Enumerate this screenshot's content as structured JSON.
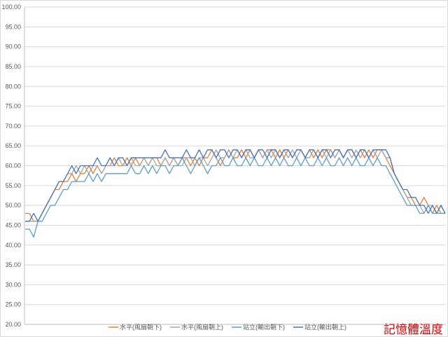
{
  "chart_data": {
    "type": "line",
    "title": "",
    "xlabel": "",
    "ylabel": "",
    "ylim": [
      20,
      100
    ],
    "ytick_step": 5,
    "ytick_format": "0.00",
    "grid": true,
    "legend_placement": "bottom",
    "annotation": "記憶體溫度",
    "annotation_color": "#e00000",
    "series": [
      {
        "name": "水平(風扇朝下)",
        "color": "#ED7D31",
        "values": [
          48,
          48,
          46,
          46,
          48,
          50,
          52,
          54,
          54,
          56,
          56,
          58,
          56,
          58,
          58,
          60,
          58,
          60,
          58,
          60,
          60,
          62,
          60,
          60,
          62,
          60,
          62,
          60,
          62,
          60,
          62,
          62,
          60,
          62,
          60,
          62,
          60,
          62,
          62,
          60,
          62,
          60,
          62,
          62,
          64,
          62,
          60,
          62,
          64,
          62,
          62,
          64,
          62,
          64,
          62,
          64,
          62,
          64,
          64,
          62,
          64,
          62,
          64,
          62,
          64,
          64,
          62,
          64,
          62,
          64,
          62,
          64,
          64,
          62,
          64,
          62,
          64,
          64,
          62,
          64,
          62,
          64,
          62,
          64,
          64,
          62,
          60,
          58,
          56,
          54,
          52,
          52,
          50,
          50,
          52,
          50,
          48,
          50,
          48,
          48
        ]
      },
      {
        "name": "水平(風扇朝上)",
        "color": "#A5A5A5",
        "values": [
          46,
          46,
          46,
          46,
          48,
          50,
          52,
          54,
          56,
          56,
          58,
          58,
          60,
          58,
          60,
          58,
          60,
          60,
          58,
          60,
          60,
          60,
          62,
          60,
          60,
          62,
          60,
          60,
          62,
          60,
          62,
          60,
          60,
          62,
          60,
          62,
          60,
          60,
          62,
          62,
          60,
          62,
          62,
          60,
          62,
          64,
          62,
          62,
          64,
          62,
          64,
          62,
          64,
          62,
          62,
          64,
          62,
          64,
          62,
          64,
          62,
          64,
          62,
          64,
          62,
          64,
          62,
          62,
          64,
          62,
          64,
          62,
          64,
          62,
          64,
          62,
          64,
          62,
          64,
          62,
          64,
          62,
          64,
          62,
          64,
          62,
          62,
          58,
          56,
          54,
          52,
          50,
          50,
          50,
          48,
          50,
          50,
          48,
          50,
          48
        ]
      },
      {
        "name": "站立(輸出朝下)",
        "color": "#5B9BD5",
        "values": [
          44,
          44,
          42,
          46,
          46,
          48,
          50,
          50,
          52,
          54,
          54,
          56,
          56,
          56,
          56,
          58,
          56,
          58,
          56,
          58,
          58,
          58,
          58,
          58,
          58,
          60,
          58,
          58,
          60,
          58,
          60,
          58,
          60,
          60,
          58,
          60,
          60,
          62,
          60,
          58,
          60,
          62,
          60,
          58,
          60,
          60,
          62,
          60,
          60,
          62,
          60,
          60,
          62,
          60,
          62,
          60,
          60,
          62,
          60,
          62,
          60,
          62,
          60,
          60,
          62,
          60,
          62,
          60,
          60,
          62,
          60,
          62,
          60,
          60,
          62,
          60,
          62,
          60,
          62,
          60,
          60,
          62,
          60,
          62,
          60,
          60,
          58,
          56,
          54,
          52,
          50,
          50,
          50,
          48,
          48,
          50,
          48,
          48,
          48,
          48
        ]
      },
      {
        "name": "站立(輸出朝上)",
        "color": "#4472C4",
        "values": [
          46,
          46,
          48,
          46,
          48,
          50,
          52,
          54,
          56,
          56,
          58,
          60,
          58,
          60,
          60,
          60,
          60,
          62,
          60,
          60,
          62,
          60,
          62,
          62,
          60,
          62,
          62,
          62,
          62,
          62,
          62,
          62,
          62,
          64,
          62,
          62,
          62,
          62,
          64,
          62,
          62,
          64,
          62,
          64,
          64,
          62,
          64,
          64,
          62,
          64,
          64,
          62,
          64,
          64,
          62,
          64,
          64,
          62,
          64,
          64,
          62,
          64,
          64,
          62,
          64,
          64,
          62,
          64,
          64,
          62,
          64,
          64,
          62,
          64,
          64,
          62,
          64,
          64,
          62,
          64,
          64,
          62,
          64,
          64,
          64,
          64,
          62,
          58,
          56,
          54,
          54,
          52,
          52,
          50,
          50,
          48,
          50,
          48,
          50,
          48
        ]
      }
    ]
  }
}
